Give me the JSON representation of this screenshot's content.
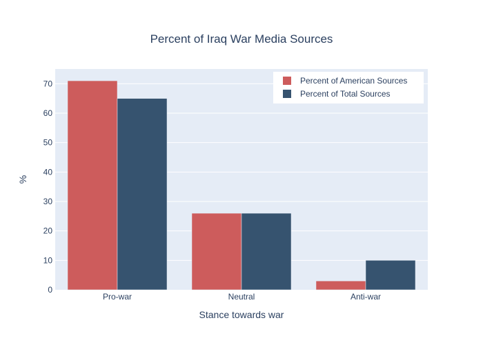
{
  "chart_data": {
    "type": "bar",
    "title": "Percent of Iraq War Media Sources",
    "xlabel": "Stance towards war",
    "ylabel": "%",
    "categories": [
      "Pro-war",
      "Neutral",
      "Anti-war"
    ],
    "ylim": [
      0,
      75
    ],
    "yticks": [
      0,
      10,
      20,
      30,
      40,
      50,
      60,
      70
    ],
    "grid": true,
    "legend_position": "top-right",
    "series": [
      {
        "name": "Percent of American Sources",
        "values": [
          71,
          26,
          3
        ],
        "color": "#cd5c5c"
      },
      {
        "name": "Percent of Total Sources",
        "values": [
          65,
          26,
          10
        ],
        "color": "#36536f"
      }
    ]
  },
  "colors": {
    "plot_background": "#e5ecf6",
    "grid": "#ffffff",
    "text": "#2a3f5f"
  }
}
